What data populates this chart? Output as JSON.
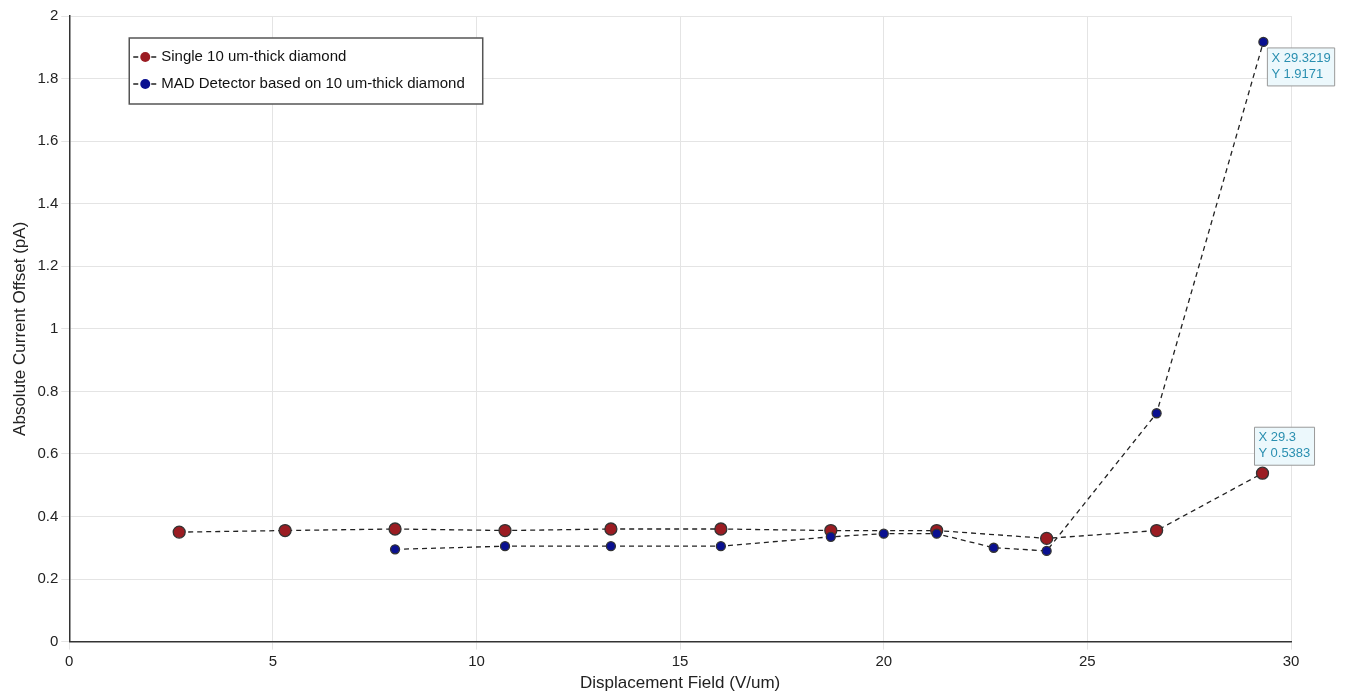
{
  "chart_data": {
    "type": "line",
    "xlabel": "Displacement Field (V/um)",
    "ylabel": "Absolute Current Offset (pA)",
    "xlim": [
      0,
      30
    ],
    "xticks": [
      0,
      5,
      10,
      15,
      20,
      25,
      30
    ],
    "ylim": [
      0,
      2
    ],
    "yticks": [
      0,
      0.2,
      0.4,
      0.6,
      0.8,
      1,
      1.2,
      1.4,
      1.6,
      1.8,
      2
    ],
    "grid": true,
    "legend": "top left",
    "marker": "circle",
    "line_style": "dashed",
    "series": [
      {
        "name": "Single 10 um-thick diamond",
        "color": "#9b1c22",
        "x": [
          2.7,
          5.3,
          8,
          10.7,
          13.3,
          16,
          18.7,
          21.3,
          24,
          26.7,
          29.3
        ],
        "values": [
          0.35,
          0.355,
          0.36,
          0.355,
          0.36,
          0.36,
          0.355,
          0.355,
          0.33,
          0.355,
          0.5383
        ]
      },
      {
        "name": "MAD Detector based on 10 um-thick diamond",
        "color": "#0a1090",
        "x": [
          8,
          10.7,
          13.3,
          16,
          18.7,
          20,
          21.3,
          22.7,
          24,
          26.7,
          29.3219
        ],
        "values": [
          0.295,
          0.305,
          0.305,
          0.305,
          0.335,
          0.345,
          0.345,
          0.3,
          0.29,
          0.73,
          1.9171
        ]
      }
    ],
    "annotations": [
      {
        "text": "X 29.3219\nY 1.9171",
        "x": 29.3219,
        "y": 1.9171
      },
      {
        "text": "X 29.3\nY 0.5383",
        "x": 29.3,
        "y": 0.5383
      }
    ]
  }
}
